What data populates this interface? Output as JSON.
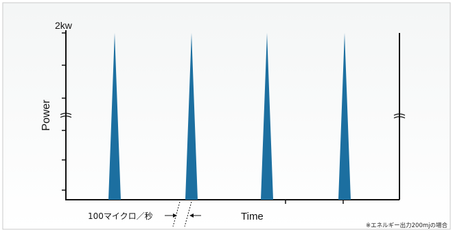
{
  "figure": {
    "y_max_label": "2kw",
    "y_axis_label": "Power",
    "x_axis_label": "Time",
    "interval_label": "100マイクロ／秒",
    "footnote": "※エネルギー出力200mjの場合",
    "pulse_count": 4,
    "pulse_color": "#1c6fa0",
    "background_top": "#f4f6f6",
    "background_bottom": "#ffffff",
    "frame_color": "#c9c9c9",
    "axis_color": "#111111"
  }
}
